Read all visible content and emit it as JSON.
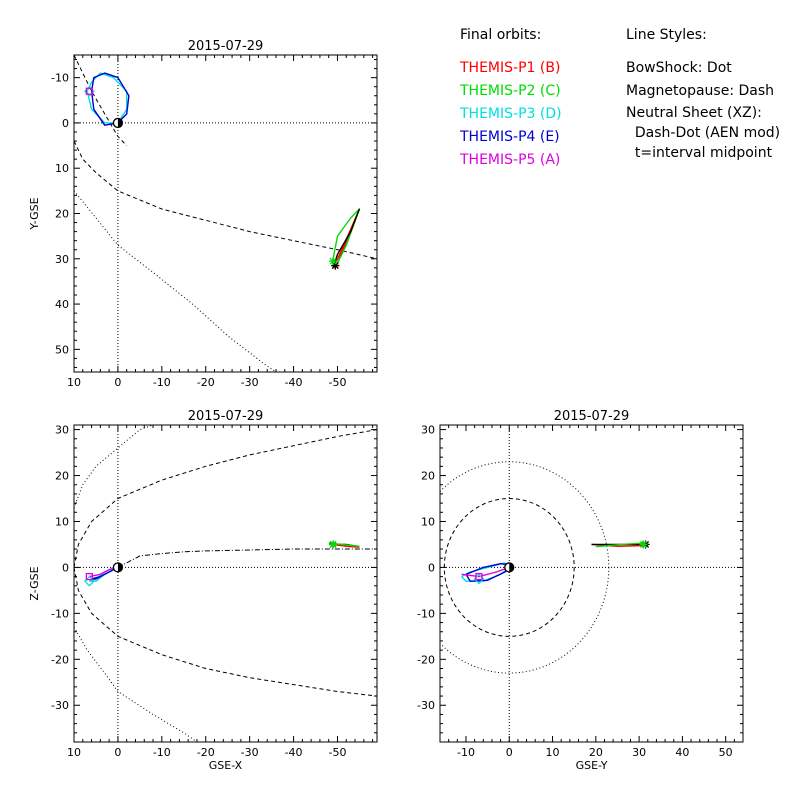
{
  "legend_orbits": {
    "title": "Final orbits:",
    "items": [
      {
        "label": "THEMIS-P1 (B)",
        "color": "#ff0000"
      },
      {
        "label": "THEMIS-P2 (C)",
        "color": "#00dd00"
      },
      {
        "label": "THEMIS-P3 (D)",
        "color": "#00e0e0"
      },
      {
        "label": "THEMIS-P4 (E)",
        "color": "#0000d0"
      },
      {
        "label": "THEMIS-P5 (A)",
        "color": "#e000e0"
      }
    ]
  },
  "legend_styles": {
    "title": "Line Styles:",
    "lines": [
      "BowShock: Dot",
      "Magnetopause: Dash",
      "Neutral Sheet (XZ):",
      "  Dash-Dot (AEN mod)",
      "  t=interval midpoint"
    ]
  },
  "chart_data": [
    {
      "type": "line",
      "title": "2015-07-29",
      "xlabel": "",
      "ylabel": "Y-GSE",
      "xlim": [
        10,
        -59
      ],
      "ylim": [
        55,
        -15
      ],
      "xticks": [
        "10",
        "0",
        "-10",
        "-20",
        "-30",
        "-40",
        "-50"
      ],
      "yticks": [
        "-10",
        "0",
        "10",
        "20",
        "30",
        "40",
        "50"
      ],
      "series": [
        {
          "color": "#ff0000",
          "points": [
            [
              -50,
              31
            ],
            [
              -55,
              19
            ],
            [
              -51,
              28
            ],
            [
              -49,
              32
            ]
          ]
        },
        {
          "color": "#00dd00",
          "points": [
            [
              -49,
              30
            ],
            [
              -50,
              25
            ],
            [
              -53,
              21
            ],
            [
              -55,
              19
            ],
            [
              -52,
              27
            ],
            [
              -50,
              31
            ]
          ]
        },
        {
          "color": "#00e0e0",
          "points": [
            [
              7,
              -7
            ],
            [
              6,
              -9
            ],
            [
              4,
              -11
            ],
            [
              1,
              -10
            ],
            [
              -2,
              -7
            ],
            [
              -2,
              -3
            ],
            [
              0,
              0
            ],
            [
              3,
              0
            ],
            [
              6,
              -3
            ],
            [
              7,
              -7
            ]
          ]
        },
        {
          "color": "#0000d0",
          "points": [
            [
              6,
              -7
            ],
            [
              5.5,
              -10
            ],
            [
              3,
              -11
            ],
            [
              0,
              -10
            ],
            [
              -2.5,
              -6
            ],
            [
              -2,
              -2
            ],
            [
              0,
              0
            ],
            [
              3,
              0.5
            ],
            [
              5.5,
              -3
            ],
            [
              6,
              -7
            ]
          ]
        },
        {
          "color": "#000000",
          "points": [
            [
              -49,
              32
            ],
            [
              -50,
              29
            ],
            [
              -53,
              24
            ],
            [
              -55,
              19
            ]
          ]
        }
      ],
      "boundaries": [
        {
          "style": "dash",
          "points": [
            [
              10,
              -15
            ],
            [
              8,
              -11
            ],
            [
              6,
              -7
            ],
            [
              3,
              -2
            ],
            [
              0,
              3
            ],
            [
              -2,
              5
            ]
          ]
        },
        {
          "style": "dash",
          "points": [
            [
              10,
              4
            ],
            [
              8,
              8
            ],
            [
              5,
              11
            ],
            [
              0,
              15
            ],
            [
              -10,
              19
            ],
            [
              -20,
              21.5
            ],
            [
              -30,
              24
            ],
            [
              -40,
              26
            ],
            [
              -50,
              28
            ],
            [
              -59,
              30
            ]
          ]
        },
        {
          "style": "dot",
          "points": [
            [
              10,
              15
            ],
            [
              5,
              21
            ],
            [
              0,
              27
            ],
            [
              -8,
              33
            ],
            [
              -17,
              40
            ],
            [
              -25,
              47
            ],
            [
              -33,
              53
            ],
            [
              -36,
              55
            ]
          ]
        }
      ],
      "markers": [
        {
          "symbol": "asterisk",
          "x": -49.5,
          "y": 31.5,
          "color": "#ff0000"
        },
        {
          "symbol": "asterisk",
          "x": -49.5,
          "y": 31.5,
          "color": "#000000"
        },
        {
          "symbol": "asterisk",
          "x": -49,
          "y": 30.5,
          "color": "#00dd00"
        },
        {
          "symbol": "diamond",
          "x": 6.5,
          "y": -7,
          "color": "#00e0e0"
        },
        {
          "symbol": "square",
          "x": 6.5,
          "y": -7,
          "color": "#e000e0"
        },
        {
          "symbol": "earth",
          "x": 0,
          "y": 0
        }
      ]
    },
    {
      "type": "line",
      "title": "2015-07-29",
      "xlabel": "GSE-X",
      "ylabel": "Z-GSE",
      "xlim": [
        10,
        -59
      ],
      "ylim": [
        -38,
        31
      ],
      "xticks": [
        "10",
        "0",
        "-10",
        "-20",
        "-30",
        "-40",
        "-50"
      ],
      "yticks": [
        "30",
        "20",
        "10",
        "0",
        "-10",
        "-20",
        "-30"
      ],
      "series": [
        {
          "color": "#000000",
          "points": [
            [
              -49,
              5
            ],
            [
              -52,
              5
            ],
            [
              -55,
              4.5
            ]
          ]
        },
        {
          "color": "#ff0000",
          "points": [
            [
              -49,
              5
            ],
            [
              -52,
              4.6
            ],
            [
              -55,
              4.4
            ]
          ]
        },
        {
          "color": "#00dd00",
          "points": [
            [
              -48,
              5.3
            ],
            [
              -51,
              5
            ],
            [
              -55,
              4.6
            ]
          ]
        },
        {
          "color": "#00e0e0",
          "points": [
            [
              6.5,
              -3
            ],
            [
              5,
              -3
            ],
            [
              3,
              -1.5
            ],
            [
              1,
              -0.5
            ],
            [
              -1,
              0.5
            ],
            [
              1,
              0
            ],
            [
              3,
              -1
            ],
            [
              5,
              -2.5
            ],
            [
              6.5,
              -3
            ]
          ]
        },
        {
          "color": "#0000d0",
          "points": [
            [
              6,
              -2.5
            ],
            [
              4,
              -2
            ],
            [
              2,
              -1
            ],
            [
              0,
              0
            ],
            [
              -1,
              0.5
            ],
            [
              1,
              -0.5
            ],
            [
              3,
              -1.5
            ],
            [
              5,
              -2.5
            ],
            [
              6,
              -2.5
            ]
          ]
        },
        {
          "color": "#e000e0",
          "points": [
            [
              6.5,
              -2
            ],
            [
              4,
              -1.5
            ],
            [
              2,
              -0.5
            ],
            [
              0,
              0
            ]
          ]
        }
      ],
      "boundaries": [
        {
          "style": "dashdot",
          "points": [
            [
              0,
              0
            ],
            [
              -5,
              2.5
            ],
            [
              -10,
              3
            ],
            [
              -15,
              3.4
            ],
            [
              -20,
              3.6
            ],
            [
              -30,
              3.8
            ],
            [
              -40,
              4
            ],
            [
              -59,
              4
            ]
          ]
        },
        {
          "style": "dash",
          "points": [
            [
              10,
              0
            ],
            [
              9,
              5
            ],
            [
              6,
              10
            ],
            [
              0,
              15
            ],
            [
              -10,
              19
            ],
            [
              -20,
              22
            ],
            [
              -30,
              24.5
            ],
            [
              -40,
              26.5
            ],
            [
              -50,
              28.5
            ],
            [
              -59,
              30
            ]
          ]
        },
        {
          "style": "dash",
          "points": [
            [
              10,
              0
            ],
            [
              9,
              -5
            ],
            [
              6,
              -10
            ],
            [
              0,
              -15
            ],
            [
              -10,
              -19
            ],
            [
              -20,
              -22
            ],
            [
              -30,
              -24
            ],
            [
              -40,
              -25.5
            ],
            [
              -50,
              -27
            ],
            [
              -59,
              -28
            ]
          ]
        },
        {
          "style": "dot",
          "points": [
            [
              10,
              13
            ],
            [
              8,
              18
            ],
            [
              5,
              22
            ],
            [
              0,
              26
            ],
            [
              -5,
              30
            ],
            [
              -8,
              31
            ]
          ]
        },
        {
          "style": "dot",
          "points": [
            [
              10,
              -13
            ],
            [
              7,
              -18
            ],
            [
              3,
              -23
            ],
            [
              0,
              -27
            ],
            [
              -8,
              -32
            ],
            [
              -15,
              -36
            ],
            [
              -18,
              -38
            ]
          ]
        }
      ],
      "markers": [
        {
          "symbol": "asterisk",
          "x": -49,
          "y": 5,
          "color": "#000000"
        },
        {
          "symbol": "asterisk",
          "x": -49,
          "y": 5,
          "color": "#00dd00"
        },
        {
          "symbol": "diamond",
          "x": 6.5,
          "y": -3,
          "color": "#00e0e0"
        },
        {
          "symbol": "square",
          "x": 6.5,
          "y": -2,
          "color": "#e000e0"
        },
        {
          "symbol": "earth",
          "x": 0,
          "y": 0
        }
      ]
    },
    {
      "type": "line",
      "title": "2015-07-29",
      "xlabel": "GSE-Y",
      "ylabel": "",
      "xlim": [
        -16,
        54
      ],
      "ylim": [
        -38,
        31
      ],
      "xticks": [
        "-10",
        "0",
        "10",
        "20",
        "30",
        "40",
        "50"
      ],
      "yticks": [
        "30",
        "20",
        "10",
        "0",
        "-10",
        "-20",
        "-30"
      ],
      "series": [
        {
          "color": "#ff0000",
          "points": [
            [
              19,
              5
            ],
            [
              25,
              4.6
            ],
            [
              32,
              4.8
            ]
          ]
        },
        {
          "color": "#000000",
          "points": [
            [
              19,
              5
            ],
            [
              25,
              5
            ],
            [
              32,
              5
            ]
          ]
        },
        {
          "color": "#00dd00",
          "points": [
            [
              20,
              4.5
            ],
            [
              26,
              5
            ],
            [
              31,
              5.3
            ]
          ]
        },
        {
          "color": "#00e0e0",
          "points": [
            [
              -11,
              -2
            ],
            [
              -10,
              -3
            ],
            [
              -6,
              -3
            ],
            [
              -2,
              -1.5
            ],
            [
              0,
              0
            ],
            [
              -1,
              1
            ],
            [
              -5,
              0
            ],
            [
              -9,
              -1
            ],
            [
              -11,
              -2
            ]
          ]
        },
        {
          "color": "#0000d0",
          "points": [
            [
              -10,
              -1.5
            ],
            [
              -9,
              -3
            ],
            [
              -5,
              -2.8
            ],
            [
              -1,
              -1
            ],
            [
              0.5,
              0.5
            ],
            [
              -2,
              0.8
            ],
            [
              -6,
              0
            ],
            [
              -10,
              -1.5
            ]
          ]
        },
        {
          "color": "#e000e0",
          "points": [
            [
              -11,
              -1.5
            ],
            [
              -7,
              -2
            ],
            [
              -3,
              -1
            ],
            [
              0,
              0
            ]
          ]
        }
      ],
      "boundaries": [
        {
          "style": "circle-dash",
          "cx": 0,
          "cy": 0,
          "r": 15
        },
        {
          "style": "circle-dot",
          "cx": 0,
          "cy": 0,
          "r": 23
        }
      ],
      "markers": [
        {
          "symbol": "asterisk",
          "x": 31.5,
          "y": 5,
          "color": "#000000"
        },
        {
          "symbol": "asterisk",
          "x": 31,
          "y": 5,
          "color": "#00dd00"
        },
        {
          "symbol": "diamond",
          "x": -7,
          "y": -2.5,
          "color": "#00e0e0"
        },
        {
          "symbol": "square",
          "x": -7,
          "y": -2,
          "color": "#e000e0"
        },
        {
          "symbol": "earth",
          "x": 0,
          "y": 0
        }
      ]
    }
  ]
}
